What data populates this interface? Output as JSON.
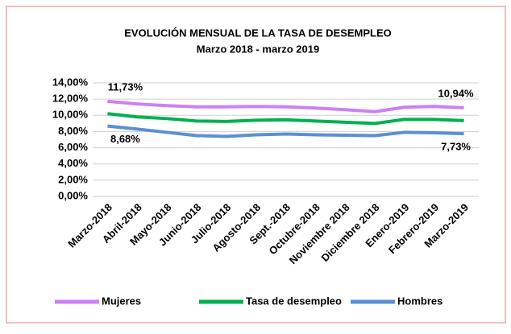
{
  "chart_data": {
    "type": "line",
    "title": "EVOLUCIÓN MENSUAL DE LA TASA DE DESEMPLEO",
    "subtitle": "Marzo 2018 - marzo 2019",
    "categories": [
      "Marzo-2018",
      "Abril-2018",
      "Mayo-2018",
      "Junio-2018",
      "Julio-2018",
      "Agosto-2018",
      "Sept.-2018",
      "Octubre-2018",
      "Noviembre 2018",
      "Diciembre 2018",
      "Enero-2019",
      "Febrero-2019",
      "Marzo-2019"
    ],
    "series": [
      {
        "name": "Mujeres",
        "color": "#cc80f5",
        "values": [
          11.73,
          11.4,
          11.2,
          11.05,
          11.05,
          11.1,
          11.05,
          10.9,
          10.7,
          10.45,
          11.0,
          11.1,
          10.94
        ],
        "value_labels": [
          "11,73%",
          null,
          null,
          null,
          null,
          null,
          null,
          null,
          null,
          null,
          null,
          null,
          "10,94%"
        ]
      },
      {
        "name": "Tasa de desempleo",
        "color": "#00b050",
        "values": [
          10.2,
          9.8,
          9.6,
          9.3,
          9.25,
          9.4,
          9.45,
          9.3,
          9.15,
          9.0,
          9.5,
          9.5,
          9.35
        ]
      },
      {
        "name": "Hombres",
        "color": "#5b8fd6",
        "values": [
          8.68,
          8.3,
          7.9,
          7.5,
          7.4,
          7.6,
          7.7,
          7.6,
          7.55,
          7.5,
          7.9,
          7.85,
          7.73
        ],
        "value_labels": [
          "8,68%",
          null,
          null,
          null,
          null,
          null,
          null,
          null,
          null,
          null,
          null,
          null,
          "7,73%"
        ]
      }
    ],
    "ylim": [
      0,
      14
    ],
    "yticks": [
      {
        "value": 0,
        "label": "0,00%"
      },
      {
        "value": 2,
        "label": "2,00%"
      },
      {
        "value": 4,
        "label": "4,00%"
      },
      {
        "value": 6,
        "label": "6,00%"
      },
      {
        "value": 8,
        "label": "8,00%"
      },
      {
        "value": 10,
        "label": "10,00%"
      },
      {
        "value": 12,
        "label": "12,00%"
      },
      {
        "value": 14,
        "label": "14,00%"
      }
    ],
    "grid": true,
    "legend": "bottom"
  }
}
